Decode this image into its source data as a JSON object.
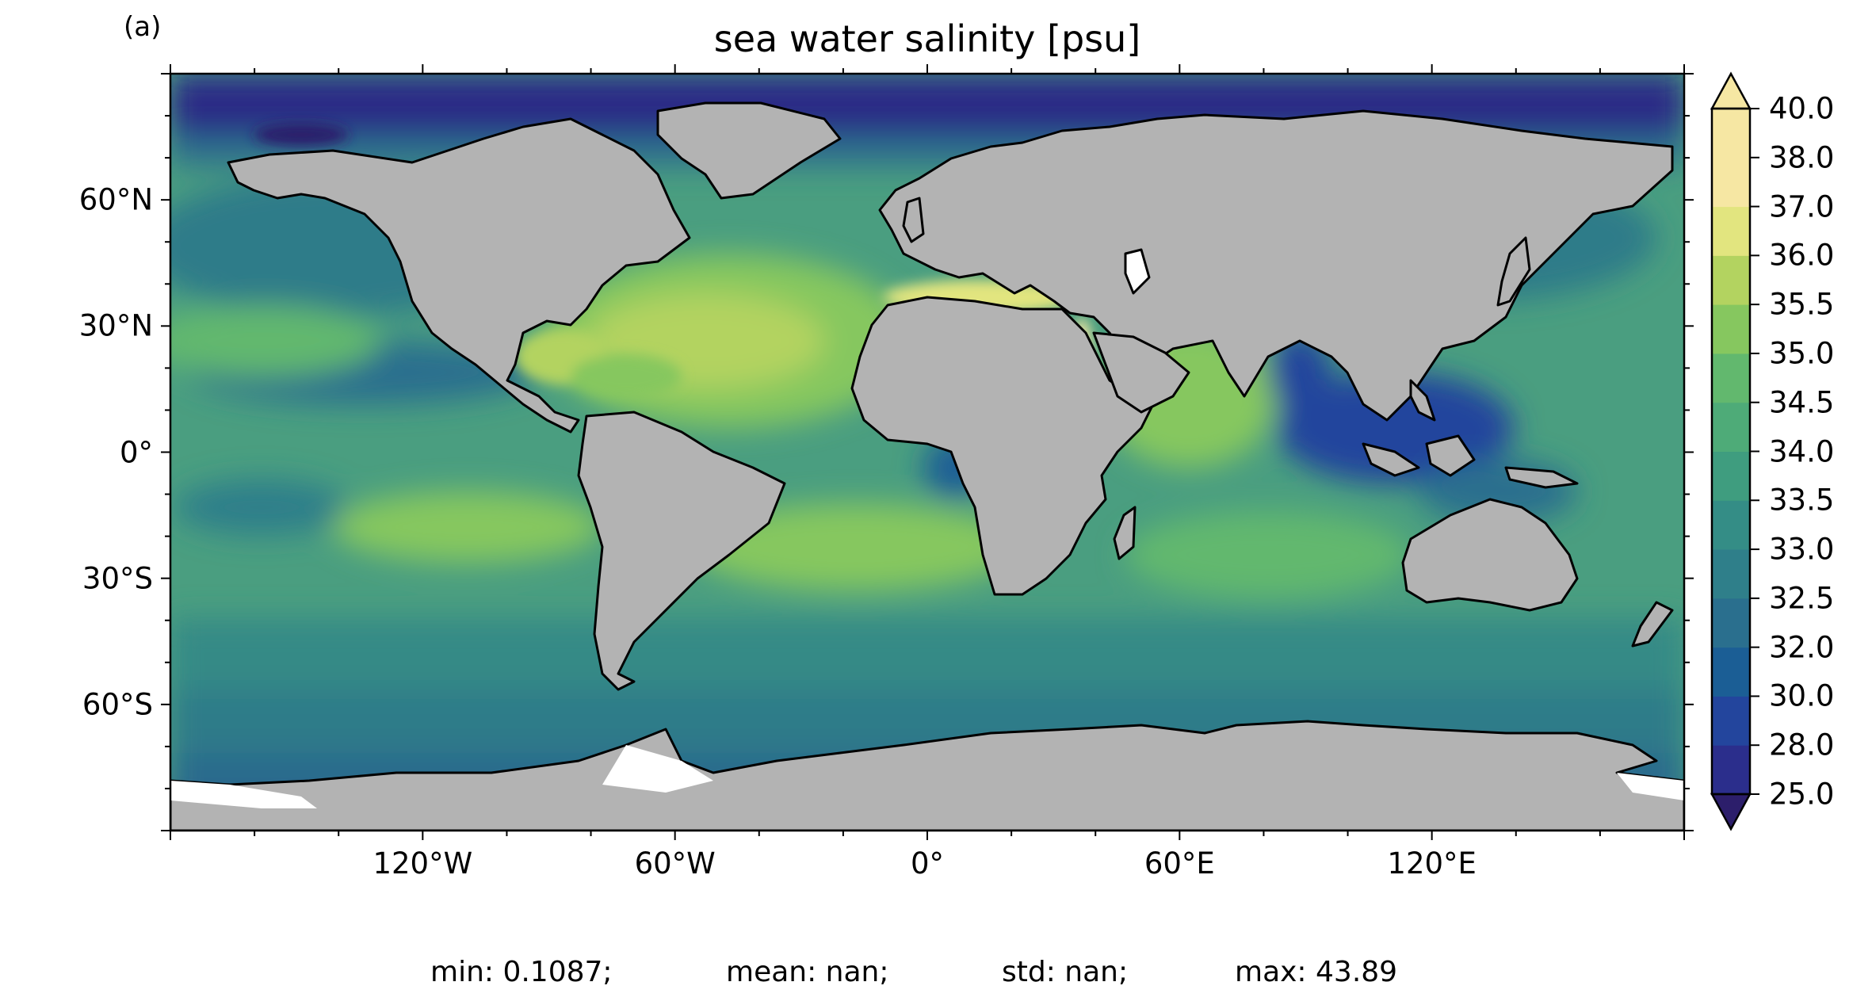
{
  "figure": {
    "panel_label": "(a)",
    "title": "sea water salinity [psu]",
    "stats": {
      "min": "min: 0.1087;",
      "mean": "mean: nan;",
      "std": "std: nan;",
      "max": "max: 43.89"
    }
  },
  "colors": {
    "land": "#b3b3b3",
    "ice": "#ffffff",
    "coast": "#000000",
    "cb_bins": [
      "#2c1e6b",
      "#2b2e8c",
      "#23459d",
      "#1b5e95",
      "#2a6f8e",
      "#2f7f8a",
      "#348d86",
      "#3f9d7f",
      "#4eab78",
      "#62b86e",
      "#86c75f",
      "#b3d360",
      "#e2e57f",
      "#f6e7a3"
    ]
  },
  "chart_data": {
    "type": "heatmap",
    "title": "sea water salinity [psu]",
    "projection": "PlateCarree",
    "xlim": [
      -180,
      180
    ],
    "ylim": [
      -90,
      90
    ],
    "x_ticks": [
      "120°W",
      "60°W",
      "0°",
      "60°E",
      "120°E"
    ],
    "x_tick_values": [
      -120,
      -60,
      0,
      60,
      120
    ],
    "y_ticks": [
      "60°N",
      "30°N",
      "0°",
      "30°S",
      "60°S"
    ],
    "y_tick_values": [
      60,
      30,
      0,
      -30,
      -60
    ],
    "colorbar": {
      "levels": [
        25.0,
        28.0,
        30.0,
        32.0,
        32.5,
        33.0,
        33.5,
        34.0,
        34.5,
        35.0,
        35.5,
        36.0,
        37.0,
        38.0,
        40.0
      ],
      "tick_labels": [
        "25.0",
        "28.0",
        "30.0",
        "32.0",
        "32.5",
        "33.0",
        "33.5",
        "34.0",
        "34.5",
        "35.0",
        "35.5",
        "36.0",
        "37.0",
        "38.0",
        "40.0"
      ],
      "extend": "both"
    },
    "stats": {
      "min": 0.1087,
      "mean": "nan",
      "std": "nan",
      "max": 43.89
    }
  }
}
